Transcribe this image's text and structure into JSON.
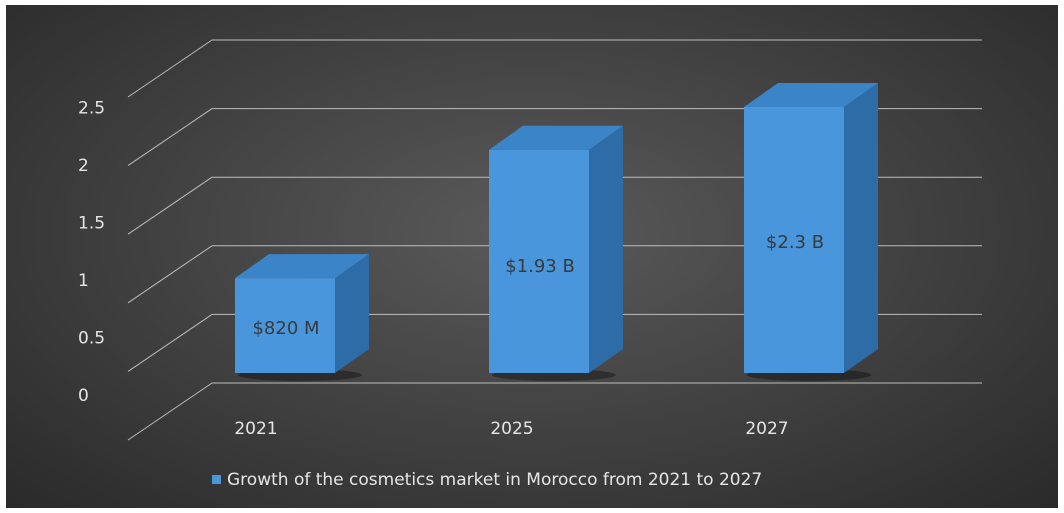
{
  "chart_data": {
    "type": "bar",
    "categories": [
      "2021",
      "2025",
      "2027"
    ],
    "series": [
      {
        "name": "Growth of the cosmetics market in Morocco from 2021 to 2027",
        "values": [
          0.82,
          1.93,
          2.3
        ],
        "data_labels": [
          "$820 M",
          "$1.93 B",
          "$2.3 B"
        ]
      }
    ],
    "ylim": [
      0,
      2.5
    ],
    "yticks": [
      "0",
      "0.5",
      "1",
      "1.5",
      "2",
      "2.5"
    ],
    "grid": true,
    "legend_position": "bottom",
    "colors": {
      "bar_front": "#4a96dc",
      "bar_side": "#2e6ca8",
      "bar_top": "#3c84c8",
      "gridline": "#bdbdbd"
    }
  }
}
